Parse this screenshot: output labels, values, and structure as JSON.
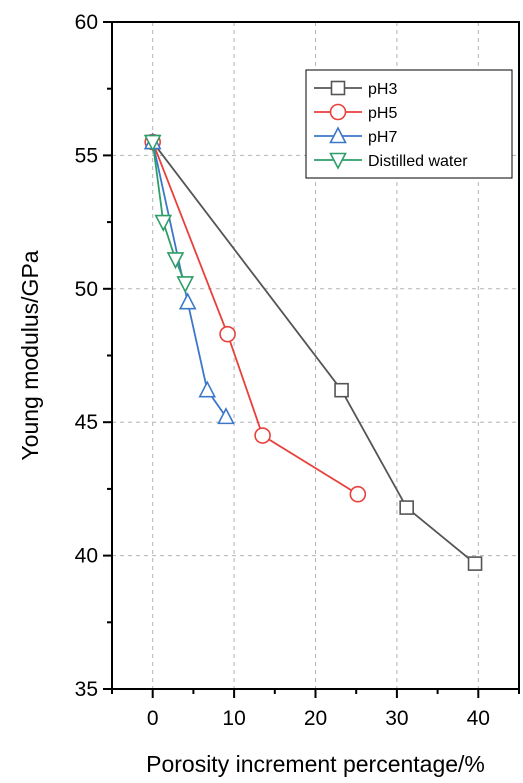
{
  "chart_data": {
    "type": "line",
    "xlabel": "Porosity increment percentage/%",
    "ylabel": "Young modulus/GPa",
    "xlim": [
      -5,
      45
    ],
    "ylim": [
      35,
      60
    ],
    "x_ticks": [
      0,
      10,
      20,
      30,
      40
    ],
    "y_ticks": [
      35,
      40,
      45,
      50,
      55,
      60
    ],
    "grid": "dashed",
    "legend_position": "top-right",
    "series": [
      {
        "name": "pH3",
        "color": "#555555",
        "marker": "square",
        "points": [
          [
            0,
            55.5
          ],
          [
            23.2,
            46.2
          ],
          [
            31.2,
            41.8
          ],
          [
            39.6,
            39.7
          ]
        ]
      },
      {
        "name": "pH5",
        "color": "#e8413c",
        "marker": "circle",
        "points": [
          [
            0,
            55.5
          ],
          [
            9.2,
            48.3
          ],
          [
            13.5,
            44.5
          ],
          [
            25.2,
            42.3
          ]
        ]
      },
      {
        "name": "pH7",
        "color": "#3c78c8",
        "marker": "triangle-up",
        "points": [
          [
            0,
            55.5
          ],
          [
            4.3,
            49.5
          ],
          [
            6.7,
            46.2
          ],
          [
            9.0,
            45.2
          ]
        ]
      },
      {
        "name": "Distilled water",
        "color": "#2e9e68",
        "marker": "triangle-down",
        "points": [
          [
            0,
            55.5
          ],
          [
            1.3,
            52.5
          ],
          [
            2.8,
            51.1
          ],
          [
            4.0,
            50.2
          ]
        ]
      }
    ]
  }
}
